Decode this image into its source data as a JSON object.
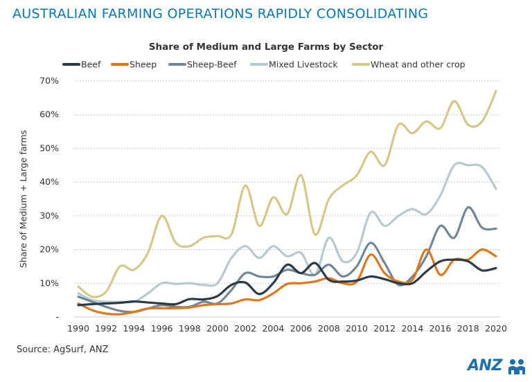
{
  "header": {
    "title": "AUSTRALIAN FARMING OPERATIONS RAPIDLY CONSOLIDATING"
  },
  "footer": {
    "source": "Source: AgSurf, ANZ",
    "logo_text": "ANZ"
  },
  "colors": {
    "title": "#0a77b4",
    "beef": "#2b3a44",
    "sheep": "#e0761e",
    "sheep_beef": "#6f8796",
    "mixed": "#b8c8d1",
    "wheat": "#d4c787",
    "logo": "#1f6fa8"
  },
  "chart_data": {
    "type": "line",
    "title": "Share of Medium and Large Farms by Sector",
    "xlabel": "",
    "ylabel": "Share of Medium + Large farms",
    "ylim": [
      0,
      70
    ],
    "xlim": [
      1990,
      2020
    ],
    "yticks": [
      "-",
      "10%",
      "20%",
      "30%",
      "40%",
      "50%",
      "60%",
      "70%"
    ],
    "xticks": [
      "1990",
      "1992",
      "1994",
      "1996",
      "1998",
      "2000",
      "2002",
      "2004",
      "2006",
      "2008",
      "2010",
      "2012",
      "2014",
      "2016",
      "2018",
      "2020"
    ],
    "grid": "horizontal-dashed",
    "legend": "top",
    "x": [
      1990,
      1991,
      1992,
      1993,
      1994,
      1995,
      1996,
      1997,
      1998,
      1999,
      2000,
      2001,
      2002,
      2003,
      2004,
      2005,
      2006,
      2007,
      2008,
      2009,
      2010,
      2011,
      2012,
      2013,
      2014,
      2015,
      2016,
      2017,
      2018,
      2019,
      2020
    ],
    "series": [
      {
        "name": "Beef",
        "color": "#2b3a44",
        "values": [
          3.5,
          3.8,
          4,
          4.2,
          4.6,
          4.3,
          4,
          3.8,
          5.3,
          5.2,
          6.2,
          9.5,
          10.2,
          6.8,
          10,
          15.5,
          13,
          16,
          11,
          10.5,
          10.8,
          12,
          11.2,
          10,
          10,
          13.5,
          16.5,
          17,
          16.5,
          13.8,
          14.5
        ]
      },
      {
        "name": "Sheep",
        "color": "#e0761e",
        "values": [
          4,
          2,
          1,
          0.8,
          1.5,
          2.5,
          2.6,
          2.6,
          2.8,
          3.5,
          3.8,
          4,
          5.2,
          5,
          7,
          9.8,
          10,
          10.5,
          11.5,
          10,
          10.5,
          18.5,
          13,
          10.5,
          11,
          20,
          12.5,
          17,
          17,
          20,
          18
        ]
      },
      {
        "name": "Sheep-Beef",
        "color": "#6f8796",
        "values": [
          6,
          4.5,
          3,
          1.8,
          1.5,
          2.5,
          3.5,
          3,
          3,
          4.5,
          4,
          8,
          13,
          12,
          12,
          14,
          13,
          12.5,
          15.5,
          12,
          15,
          22,
          16,
          9.5,
          12,
          18,
          27,
          23.5,
          32.5,
          26.5,
          26.2
        ]
      },
      {
        "name": "Mixed Livestock",
        "color": "#b8c8d1",
        "values": [
          7,
          5,
          4.5,
          4.5,
          4.5,
          7,
          10,
          9.8,
          10,
          9.5,
          10,
          17.5,
          21,
          17.5,
          21,
          18,
          19,
          12.5,
          23.5,
          16.5,
          19,
          31,
          27,
          30,
          32,
          30.5,
          36,
          45,
          45,
          44.5,
          38
        ]
      },
      {
        "name": "Wheat and other crop",
        "color": "#d4c787",
        "values": [
          9,
          6,
          7.5,
          15,
          14,
          19,
          30,
          22,
          21,
          23.5,
          24,
          24.5,
          39,
          27,
          35.5,
          30.5,
          42,
          24.5,
          35,
          39,
          42,
          49,
          45,
          57,
          54.5,
          58,
          56,
          64,
          57,
          58,
          67
        ]
      }
    ]
  }
}
